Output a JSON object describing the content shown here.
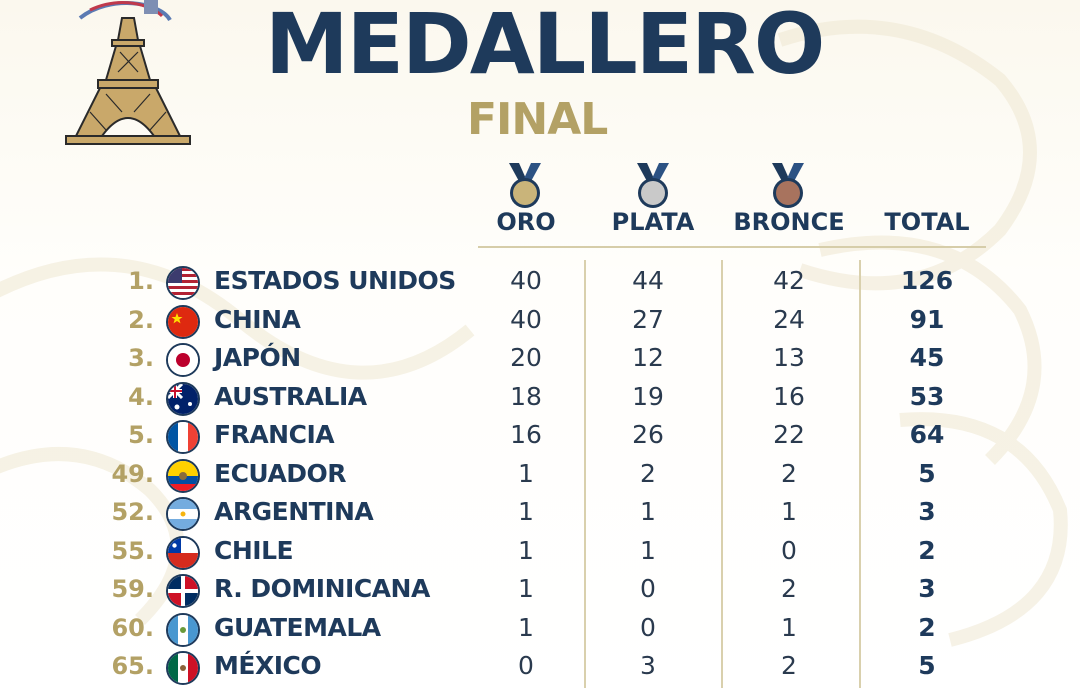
{
  "header": {
    "title": "MEDALLERO",
    "subtitle": "FINAL"
  },
  "columns": {
    "gold": "ORO",
    "silver": "PLATA",
    "bronze": "BRONCE",
    "total": "TOTAL"
  },
  "medal_colors": {
    "gold": "#c9b47a",
    "silver": "#c9c9c9",
    "bronze": "#a8735e",
    "ribbon": "#1e3a5b"
  },
  "colors": {
    "primary": "#1e3a5b",
    "accent": "#b3a165"
  },
  "rows": [
    {
      "rank": "1.",
      "country": "ESTADOS UNIDOS",
      "flag": "usa-flag-icon",
      "gold": "40",
      "silver": "44",
      "bronze": "42",
      "total": "126"
    },
    {
      "rank": "2.",
      "country": "CHINA",
      "flag": "china-flag-icon",
      "gold": "40",
      "silver": "27",
      "bronze": "24",
      "total": "91"
    },
    {
      "rank": "3.",
      "country": "JAPÓN",
      "flag": "japan-flag-icon",
      "gold": "20",
      "silver": "12",
      "bronze": "13",
      "total": "45"
    },
    {
      "rank": "4.",
      "country": "AUSTRALIA",
      "flag": "australia-flag-icon",
      "gold": "18",
      "silver": "19",
      "bronze": "16",
      "total": "53"
    },
    {
      "rank": "5.",
      "country": "FRANCIA",
      "flag": "france-flag-icon",
      "gold": "16",
      "silver": "26",
      "bronze": "22",
      "total": "64"
    },
    {
      "rank": "49.",
      "country": "ECUADOR",
      "flag": "ecuador-flag-icon",
      "gold": "1",
      "silver": "2",
      "bronze": "2",
      "total": "5"
    },
    {
      "rank": "52.",
      "country": "ARGENTINA",
      "flag": "argentina-flag-icon",
      "gold": "1",
      "silver": "1",
      "bronze": "1",
      "total": "3"
    },
    {
      "rank": "55.",
      "country": "CHILE",
      "flag": "chile-flag-icon",
      "gold": "1",
      "silver": "1",
      "bronze": "0",
      "total": "2"
    },
    {
      "rank": "59.",
      "country": "R. DOMINICANA",
      "flag": "dominican-republic-flag-icon",
      "gold": "1",
      "silver": "0",
      "bronze": "2",
      "total": "3"
    },
    {
      "rank": "60.",
      "country": "GUATEMALA",
      "flag": "guatemala-flag-icon",
      "gold": "1",
      "silver": "0",
      "bronze": "1",
      "total": "2"
    },
    {
      "rank": "65.",
      "country": "MÉXICO",
      "flag": "mexico-flag-icon",
      "gold": "0",
      "silver": "3",
      "bronze": "2",
      "total": "5"
    }
  ]
}
